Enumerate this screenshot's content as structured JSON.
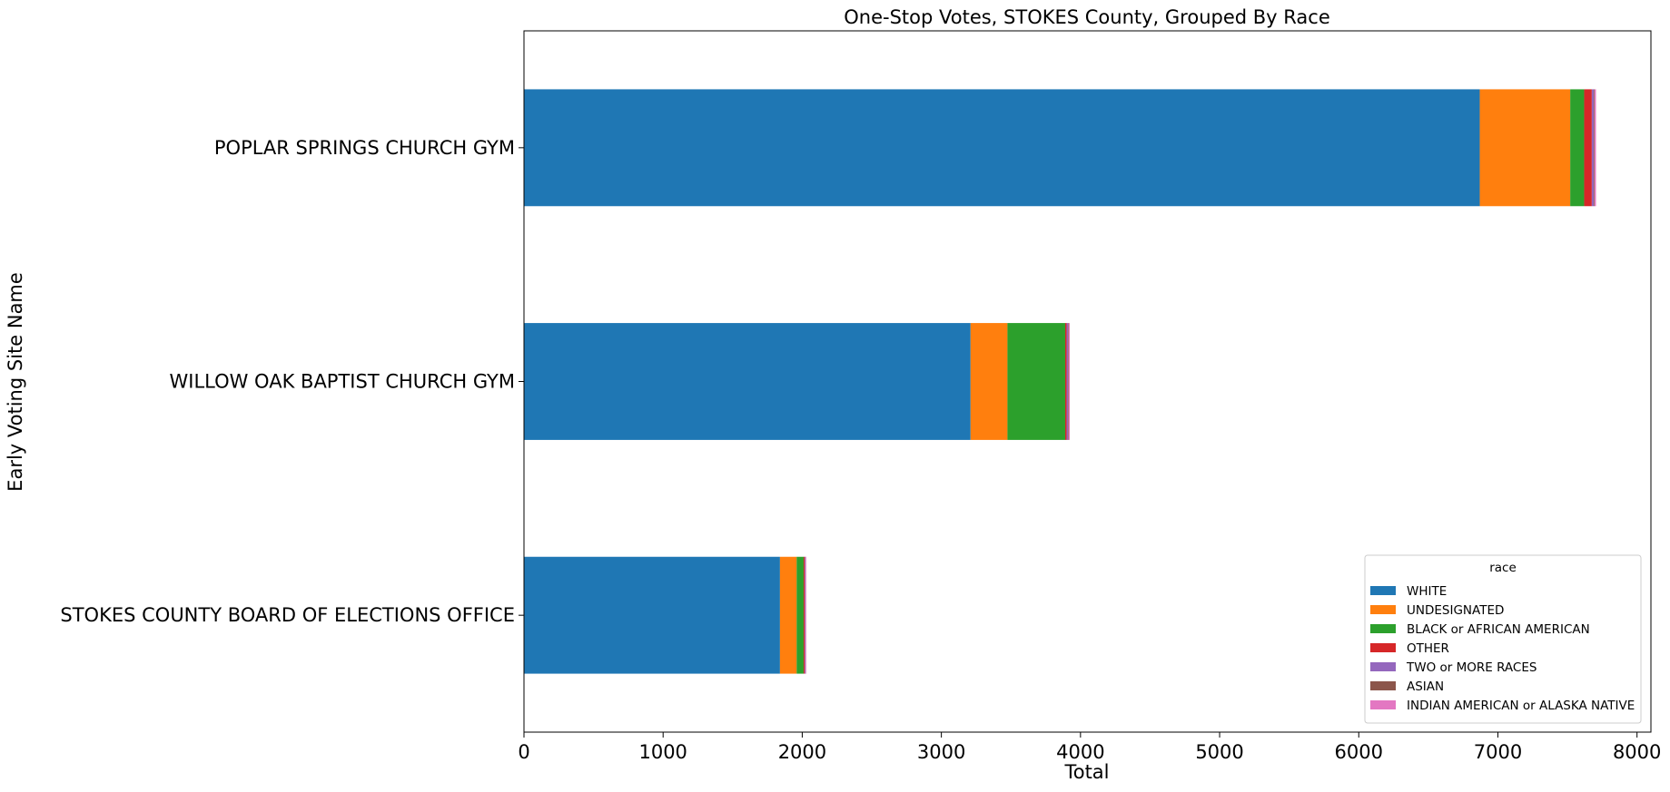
{
  "chart_data": {
    "type": "bar",
    "orientation": "horizontal",
    "stacked": true,
    "title": "One-Stop Votes, STOKES County, Grouped By Race",
    "xlabel": "Total",
    "ylabel": "Early Voting Site Name",
    "xlim": [
      0,
      8100
    ],
    "xticks": [
      0,
      1000,
      2000,
      3000,
      4000,
      5000,
      6000,
      7000,
      8000
    ],
    "grid": false,
    "legend": {
      "title": "race",
      "placement": "lower-right"
    },
    "categories": [
      "POPLAR SPRINGS CHURCH GYM",
      "WILLOW OAK BAPTIST CHURCH GYM",
      "STOKES COUNTY BOARD OF ELECTIONS OFFICE"
    ],
    "series": [
      {
        "name": "WHITE",
        "color": "#1f77b4",
        "values": [
          6870,
          3210,
          1840
        ]
      },
      {
        "name": "UNDESIGNATED",
        "color": "#ff7f0e",
        "values": [
          650,
          265,
          120
        ]
      },
      {
        "name": "BLACK or AFRICAN AMERICAN",
        "color": "#2ca02c",
        "values": [
          100,
          415,
          50
        ]
      },
      {
        "name": "OTHER",
        "color": "#d62728",
        "values": [
          55,
          10,
          8
        ]
      },
      {
        "name": "TWO or MORE RACES",
        "color": "#9467bd",
        "values": [
          15,
          10,
          5
        ]
      },
      {
        "name": "ASIAN",
        "color": "#8c564b",
        "values": [
          5,
          5,
          2
        ]
      },
      {
        "name": "INDIAN AMERICAN or ALASKA NATIVE",
        "color": "#e377c2",
        "values": [
          10,
          8,
          4
        ]
      }
    ]
  }
}
